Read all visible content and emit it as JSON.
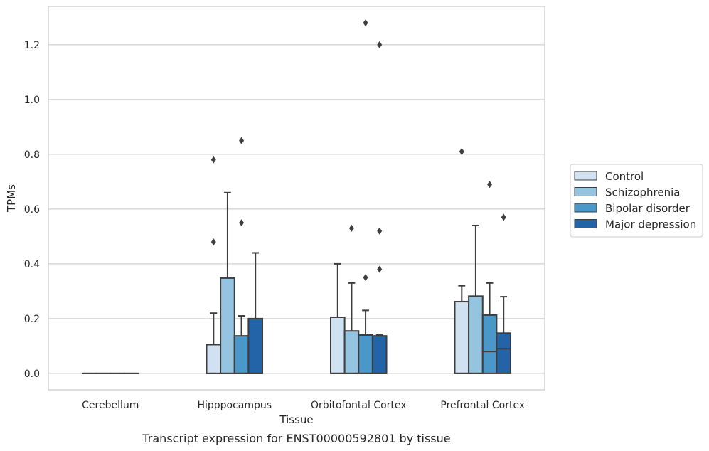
{
  "chart_data": {
    "type": "box",
    "caption": "Transcript expression for ENST00000592801 by tissue",
    "xlabel": "Tissue",
    "ylabel": "TPMs",
    "ylim": [
      -0.06,
      1.34
    ],
    "yticks": [
      0.0,
      0.2,
      0.4,
      0.6,
      0.8,
      1.0,
      1.2
    ],
    "grid": "horizontal",
    "legend_position": "right",
    "categories": [
      "Cerebellum",
      "Hipppocampus",
      "Orbitofontal Cortex",
      "Prefrontal Cortex"
    ],
    "series": [
      {
        "name": "Control",
        "color": "#d0e1f2",
        "boxes": [
          {
            "q1": 0.0,
            "median": 0.0,
            "q3": 0.0,
            "whisker_low": 0.0,
            "whisker_high": 0.0,
            "outliers": []
          },
          {
            "q1": 0.0,
            "median": 0.0,
            "q3": 0.105,
            "whisker_low": 0.0,
            "whisker_high": 0.22,
            "outliers": [
              0.48,
              0.78
            ]
          },
          {
            "q1": 0.0,
            "median": 0.0,
            "q3": 0.205,
            "whisker_low": 0.0,
            "whisker_high": 0.4,
            "outliers": []
          },
          {
            "q1": 0.0,
            "median": 0.0,
            "q3": 0.262,
            "whisker_low": 0.0,
            "whisker_high": 0.32,
            "outliers": [
              0.81
            ]
          }
        ]
      },
      {
        "name": "Schizophrenia",
        "color": "#94c4df",
        "boxes": [
          {
            "q1": 0.0,
            "median": 0.0,
            "q3": 0.0,
            "whisker_low": 0.0,
            "whisker_high": 0.0,
            "outliers": []
          },
          {
            "q1": 0.0,
            "median": 0.0,
            "q3": 0.348,
            "whisker_low": 0.0,
            "whisker_high": 0.66,
            "outliers": []
          },
          {
            "q1": 0.0,
            "median": 0.0,
            "q3": 0.155,
            "whisker_low": 0.0,
            "whisker_high": 0.33,
            "outliers": [
              0.53
            ]
          },
          {
            "q1": 0.0,
            "median": 0.0,
            "q3": 0.282,
            "whisker_low": 0.0,
            "whisker_high": 0.54,
            "outliers": []
          }
        ]
      },
      {
        "name": "Bipolar disorder",
        "color": "#4a98c9",
        "boxes": [
          {
            "q1": 0.0,
            "median": 0.0,
            "q3": 0.0,
            "whisker_low": 0.0,
            "whisker_high": 0.0,
            "outliers": []
          },
          {
            "q1": 0.0,
            "median": 0.0,
            "q3": 0.137,
            "whisker_low": 0.0,
            "whisker_high": 0.21,
            "outliers": [
              0.55,
              0.85
            ]
          },
          {
            "q1": 0.0,
            "median": 0.0,
            "q3": 0.14,
            "whisker_low": 0.0,
            "whisker_high": 0.23,
            "outliers": [
              0.35,
              1.28
            ]
          },
          {
            "q1": 0.0,
            "median": 0.08,
            "q3": 0.213,
            "whisker_low": 0.0,
            "whisker_high": 0.33,
            "outliers": [
              0.69
            ]
          }
        ]
      },
      {
        "name": "Major depression",
        "color": "#2363a8",
        "boxes": [
          {
            "q1": 0.0,
            "median": 0.0,
            "q3": 0.0,
            "whisker_low": 0.0,
            "whisker_high": 0.0,
            "outliers": []
          },
          {
            "q1": 0.0,
            "median": 0.0,
            "q3": 0.2,
            "whisker_low": 0.0,
            "whisker_high": 0.44,
            "outliers": []
          },
          {
            "q1": 0.0,
            "median": 0.0,
            "q3": 0.137,
            "whisker_low": 0.0,
            "whisker_high": 0.14,
            "outliers": [
              0.38,
              0.52,
              1.2
            ]
          },
          {
            "q1": 0.0,
            "median": 0.09,
            "q3": 0.147,
            "whisker_low": 0.0,
            "whisker_high": 0.28,
            "outliers": [
              0.57
            ]
          }
        ]
      }
    ]
  }
}
